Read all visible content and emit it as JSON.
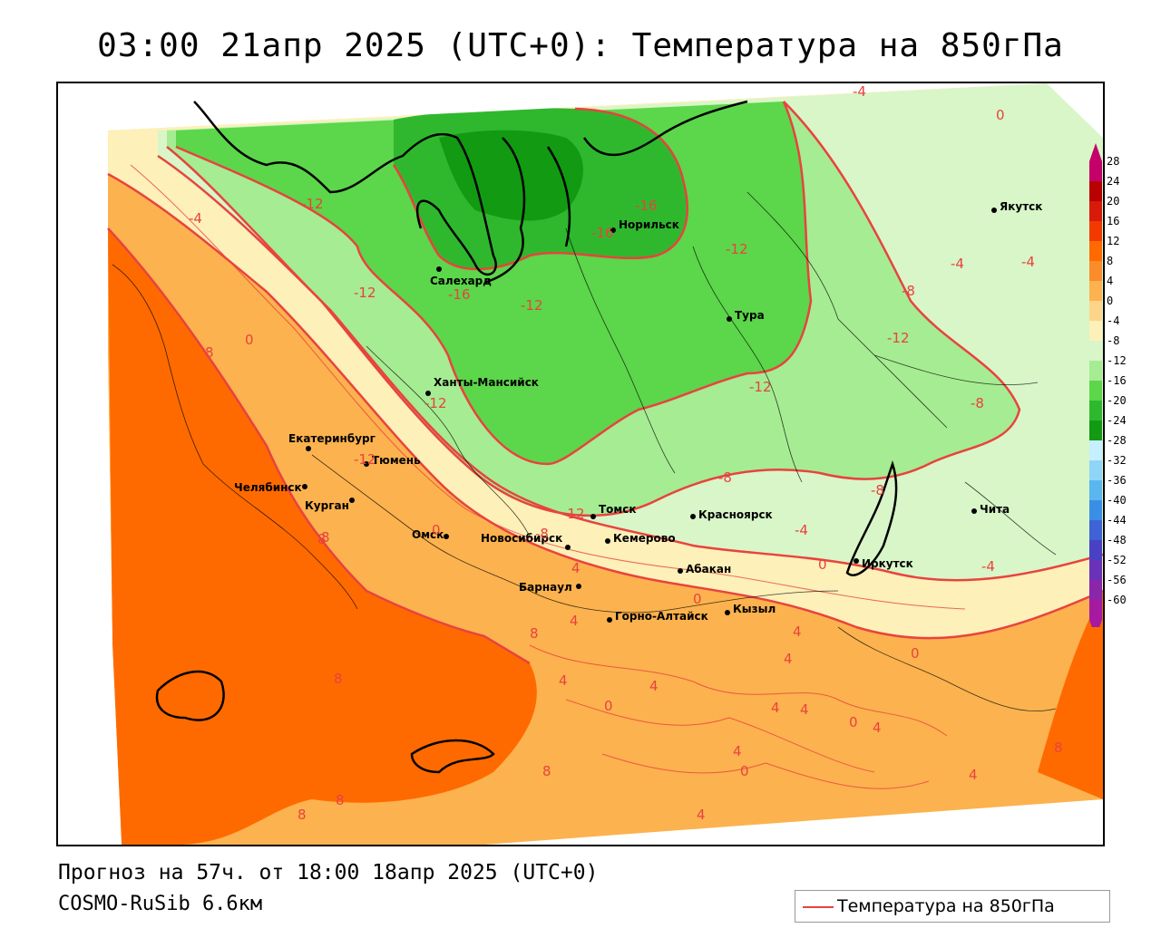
{
  "header": {
    "title": "03:00 21апр 2025 (UTC+0): Температура на 850гПа"
  },
  "footer": {
    "forecast": "Прогноз на 57ч. от 18:00 18апр 2025 (UTC+0)",
    "model": "COSMO-RuSib 6.6км"
  },
  "legend": {
    "label": "Температура на 850гПа",
    "line_color": "#e8433f"
  },
  "colorbar": {
    "ticks": [
      "28",
      "24",
      "20",
      "16",
      "12",
      "8",
      "4",
      "0",
      "-4",
      "-8",
      "-12",
      "-16",
      "-20",
      "-24",
      "-28",
      "-32",
      "-36",
      "-40",
      "-44",
      "-48",
      "-52",
      "-56",
      "-60"
    ],
    "colors": [
      "#c4006a",
      "#b80000",
      "#d81a0a",
      "#f23a00",
      "#ff6a00",
      "#fa8c2c",
      "#fcb24e",
      "#fcd58a",
      "#fdf0b8",
      "#d8f6c8",
      "#a6ec92",
      "#5cd64a",
      "#2fb82e",
      "#129a12",
      "#c6f0ff",
      "#8fd6f6",
      "#5ab6ee",
      "#3a8ee6",
      "#3d63d6",
      "#4a40c4",
      "#6a32b8",
      "#8a26aa",
      "#a61aa0"
    ]
  },
  "cities": [
    {
      "name": "Якутск"
    },
    {
      "name": "Норильск"
    },
    {
      "name": "Салехард"
    },
    {
      "name": "Тура"
    },
    {
      "name": "Ханты-Мансийск"
    },
    {
      "name": "Екатеринбург"
    },
    {
      "name": "Тюмень"
    },
    {
      "name": "Челябинск"
    },
    {
      "name": "Курган"
    },
    {
      "name": "Омск"
    },
    {
      "name": "Новосибирск"
    },
    {
      "name": "Томск"
    },
    {
      "name": "Красноярск"
    },
    {
      "name": "Кемерово"
    },
    {
      "name": "Абакан"
    },
    {
      "name": "Барнаул"
    },
    {
      "name": "Горно-Алтайск"
    },
    {
      "name": "Кызыл"
    },
    {
      "name": "Иркутск"
    },
    {
      "name": "Чита"
    }
  ],
  "contour_labels": [
    "-4",
    "0",
    "-12",
    "-16",
    "-16",
    "-12",
    "-4",
    "-12",
    "-16",
    "-12",
    "-12",
    "-8",
    "-12",
    "8",
    "0",
    "-12",
    "-12",
    "-8",
    "-4",
    "-4",
    "-8",
    "-8",
    "-12",
    "-8",
    "0",
    "4",
    "8",
    "0",
    "-4",
    "4",
    "-4",
    "0",
    "4",
    "8",
    "4",
    "0",
    "4",
    "4",
    "4",
    "0",
    "4",
    "4",
    "0",
    "4",
    "8",
    "8",
    "8",
    "4",
    "8",
    "8",
    "4",
    "8",
    "0"
  ]
}
